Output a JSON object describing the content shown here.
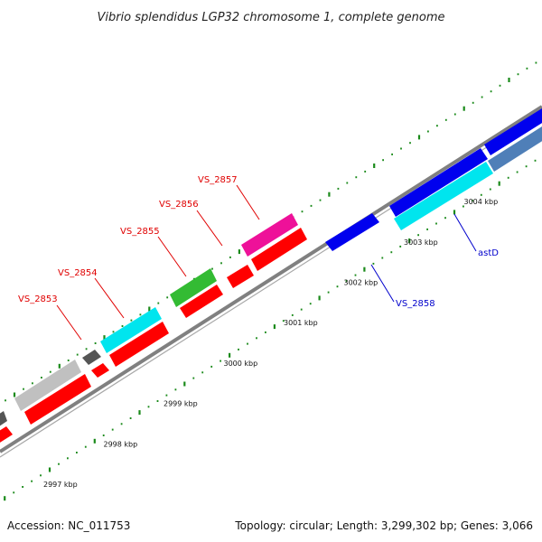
{
  "title": "Vibrio splendidus LGP32 chromosome 1, complete genome",
  "footer": {
    "accession": "Accession: NC_011753",
    "summary": "Topology: circular; Length: 3,299,302 bp; Genes: 3,066"
  },
  "scale_labels": [
    "2997 kbp",
    "2998 kbp",
    "2999 kbp",
    "3000 kbp",
    "3001 kbp",
    "3002 kbp",
    "3003 kbp",
    "3004 kbp"
  ],
  "gene_labels": [
    "VS_2853",
    "VS_2854",
    "VS_2855",
    "VS_2856",
    "VS_2857",
    "VS_2858",
    "astD"
  ],
  "colors": {
    "backbone": "#808080",
    "tick": "#1a8a1a",
    "red": "#ff0000",
    "cyan": "#00e5ee",
    "grey": "#c0c0c0",
    "dark_grey": "#555555",
    "green": "#33bb33",
    "magenta": "#ee1199",
    "blue": "#0000ee",
    "steel_blue": "#4f7fb8",
    "label_red": "#e00000",
    "label_blue": "#0000cc"
  }
}
